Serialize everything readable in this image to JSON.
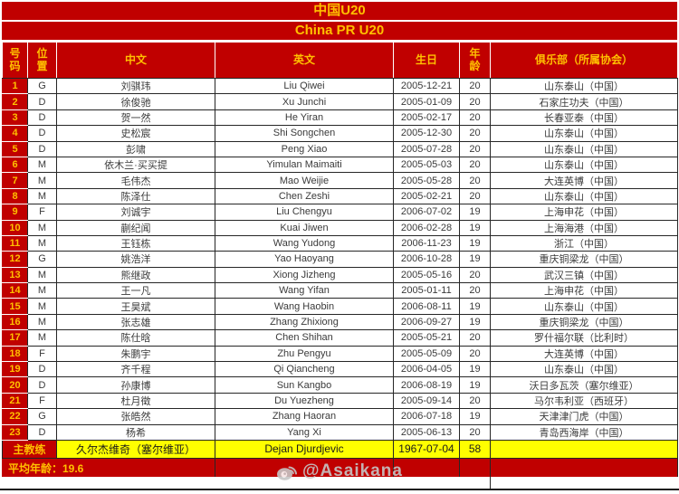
{
  "chart_data": {
    "type": "table",
    "title_cn": "中国U20",
    "title_en": "China PR U20",
    "columns": {
      "number": "号\n码",
      "position": "位\n置",
      "cn_name": "中文",
      "en_name": "英文",
      "birthday": "生日",
      "age": "年\n龄",
      "club": "俱乐部（所属协会）"
    },
    "players": [
      {
        "no": "1",
        "pos": "G",
        "cn": "刘骐玮",
        "en": "Liu Qiwei",
        "dob": "2005-12-21",
        "age": "20",
        "club": "山东泰山（中国）"
      },
      {
        "no": "2",
        "pos": "D",
        "cn": "徐俊驰",
        "en": "Xu Junchi",
        "dob": "2005-01-09",
        "age": "20",
        "club": "石家庄功夫（中国）"
      },
      {
        "no": "3",
        "pos": "D",
        "cn": "贺一然",
        "en": "He Yiran",
        "dob": "2005-02-17",
        "age": "20",
        "club": "长春亚泰（中国）"
      },
      {
        "no": "4",
        "pos": "D",
        "cn": "史松宸",
        "en": "Shi Songchen",
        "dob": "2005-12-30",
        "age": "20",
        "club": "山东泰山（中国）"
      },
      {
        "no": "5",
        "pos": "D",
        "cn": "彭啸",
        "en": "Peng Xiao",
        "dob": "2005-07-28",
        "age": "20",
        "club": "山东泰山（中国）"
      },
      {
        "no": "6",
        "pos": "M",
        "cn": "依木兰·买买提",
        "en": "Yimulan Maimaiti",
        "dob": "2005-05-03",
        "age": "20",
        "club": "山东泰山（中国）"
      },
      {
        "no": "7",
        "pos": "M",
        "cn": "毛伟杰",
        "en": "Mao Weijie",
        "dob": "2005-05-28",
        "age": "20",
        "club": "大连英博（中国）"
      },
      {
        "no": "8",
        "pos": "M",
        "cn": "陈泽仕",
        "en": "Chen Zeshi",
        "dob": "2005-02-21",
        "age": "20",
        "club": "山东泰山（中国）"
      },
      {
        "no": "9",
        "pos": "F",
        "cn": "刘诚宇",
        "en": "Liu Chengyu",
        "dob": "2006-07-02",
        "age": "19",
        "club": "上海申花（中国）"
      },
      {
        "no": "10",
        "pos": "M",
        "cn": "蒯纪闻",
        "en": "Kuai Jiwen",
        "dob": "2006-02-28",
        "age": "19",
        "club": "上海海港（中国）"
      },
      {
        "no": "11",
        "pos": "M",
        "cn": "王钰栋",
        "en": "Wang Yudong",
        "dob": "2006-11-23",
        "age": "19",
        "club": "浙江（中国）"
      },
      {
        "no": "12",
        "pos": "G",
        "cn": "姚浩洋",
        "en": "Yao Haoyang",
        "dob": "2006-10-28",
        "age": "19",
        "club": "重庆铜梁龙（中国）"
      },
      {
        "no": "13",
        "pos": "M",
        "cn": "熊继政",
        "en": "Xiong Jizheng",
        "dob": "2005-05-16",
        "age": "20",
        "club": "武汉三镇（中国）"
      },
      {
        "no": "14",
        "pos": "M",
        "cn": "王一凡",
        "en": "Wang Yifan",
        "dob": "2005-01-11",
        "age": "20",
        "club": "上海申花（中国）"
      },
      {
        "no": "15",
        "pos": "M",
        "cn": "王昊斌",
        "en": "Wang Haobin",
        "dob": "2006-08-11",
        "age": "19",
        "club": "山东泰山（中国）"
      },
      {
        "no": "16",
        "pos": "M",
        "cn": "张志雄",
        "en": "Zhang Zhixiong",
        "dob": "2006-09-27",
        "age": "19",
        "club": "重庆铜梁龙（中国）"
      },
      {
        "no": "17",
        "pos": "M",
        "cn": "陈仕晗",
        "en": "Chen Shihan",
        "dob": "2005-05-21",
        "age": "20",
        "club": "罗什福尔联（比利时）"
      },
      {
        "no": "18",
        "pos": "F",
        "cn": "朱鹏宇",
        "en": "Zhu Pengyu",
        "dob": "2005-05-09",
        "age": "20",
        "club": "大连英博（中国）"
      },
      {
        "no": "19",
        "pos": "D",
        "cn": "齐千程",
        "en": "Qi Qiancheng",
        "dob": "2006-04-05",
        "age": "19",
        "club": "山东泰山（中国）"
      },
      {
        "no": "20",
        "pos": "D",
        "cn": "孙康博",
        "en": "Sun Kangbo",
        "dob": "2006-08-19",
        "age": "19",
        "club": "沃日多瓦茨（塞尔维亚）"
      },
      {
        "no": "21",
        "pos": "F",
        "cn": "杜月徵",
        "en": "Du Yuezheng",
        "dob": "2005-09-14",
        "age": "20",
        "club": "马尔韦利亚（西班牙）"
      },
      {
        "no": "22",
        "pos": "G",
        "cn": "张皓然",
        "en": "Zhang Haoran",
        "dob": "2006-07-18",
        "age": "19",
        "club": "天津津门虎（中国）"
      },
      {
        "no": "23",
        "pos": "D",
        "cn": "杨希",
        "en": "Yang Xi",
        "dob": "2005-06-13",
        "age": "20",
        "club": "青岛西海岸（中国）"
      }
    ],
    "coach": {
      "label": "主教练",
      "cn": "久尔杰维奇（塞尔维亚）",
      "en": "Dejan Djurdjevic",
      "dob": "1967-07-04",
      "age": "58",
      "club": ""
    },
    "footer": {
      "average_age_label": "平均年龄：19.6"
    }
  },
  "watermark": {
    "handle": "@Asaikana"
  },
  "colors": {
    "table_red": "#c00000",
    "accent_gold": "#ffc000",
    "coach_row_yellow": "#ffff00",
    "cell_text": "#3a3a3a",
    "grid_dark": "#262626",
    "watermark_gray": "#c6c6c6"
  }
}
